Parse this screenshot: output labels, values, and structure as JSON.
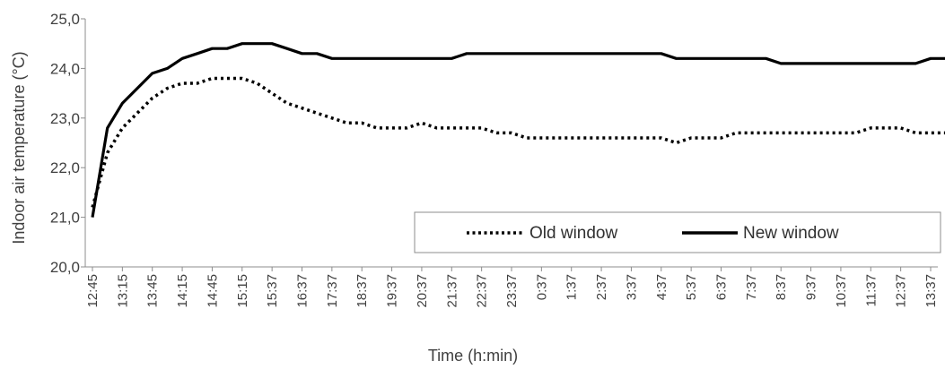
{
  "chart_data": {
    "type": "line",
    "title": "",
    "xlabel": "Time (h:min)",
    "ylabel": "Indoor air temperature (°C)",
    "ylim": [
      20.0,
      25.0
    ],
    "yticks": [
      "20,0",
      "21,0",
      "22,0",
      "23,0",
      "24,0",
      "25,0"
    ],
    "categories": [
      "12:45",
      "13:15",
      "13:45",
      "14:15",
      "14:45",
      "15:15",
      "15:37",
      "16:37",
      "17:37",
      "18:37",
      "19:37",
      "20:37",
      "21:37",
      "22:37",
      "23:37",
      "0:37",
      "1:37",
      "2:37",
      "3:37",
      "4:37",
      "5:37",
      "6:37",
      "7:37",
      "8:37",
      "9:37",
      "10:37",
      "11:37",
      "12:37",
      "13:37"
    ],
    "legend_position": "bottom-right",
    "grid": false,
    "series": [
      {
        "name": "Old window",
        "style": "dotted",
        "color": "#000000",
        "x": [
          0,
          0.5,
          1,
          1.5,
          2,
          2.5,
          3,
          3.5,
          4,
          4.5,
          5,
          5.5,
          6,
          6.5,
          7,
          7.5,
          8,
          8.5,
          9,
          9.5,
          10,
          10.5,
          11,
          11.5,
          12,
          12.5,
          13,
          13.5,
          14,
          14.5,
          15,
          15.5,
          16,
          16.5,
          17,
          17.5,
          18,
          18.5,
          19,
          19.5,
          20,
          20.5,
          21,
          21.5,
          22,
          22.5,
          23,
          23.5,
          24,
          24.5,
          25,
          25.5,
          26,
          26.5,
          27,
          27.5,
          28,
          28.5
        ],
        "values": [
          21.2,
          22.3,
          22.8,
          23.1,
          23.4,
          23.6,
          23.7,
          23.7,
          23.8,
          23.8,
          23.8,
          23.7,
          23.5,
          23.3,
          23.2,
          23.1,
          23.0,
          22.9,
          22.9,
          22.8,
          22.8,
          22.8,
          22.9,
          22.8,
          22.8,
          22.8,
          22.8,
          22.7,
          22.7,
          22.6,
          22.6,
          22.6,
          22.6,
          22.6,
          22.6,
          22.6,
          22.6,
          22.6,
          22.6,
          22.5,
          22.6,
          22.6,
          22.6,
          22.7,
          22.7,
          22.7,
          22.7,
          22.7,
          22.7,
          22.7,
          22.7,
          22.7,
          22.8,
          22.8,
          22.8,
          22.7,
          22.7,
          22.7
        ]
      },
      {
        "name": "New window",
        "style": "solid",
        "color": "#000000",
        "x": [
          0,
          0.5,
          1,
          1.5,
          2,
          2.5,
          3,
          3.5,
          4,
          4.5,
          5,
          5.5,
          6,
          6.5,
          7,
          7.5,
          8,
          8.5,
          9,
          9.5,
          10,
          10.5,
          11,
          11.5,
          12,
          12.5,
          13,
          13.5,
          14,
          14.5,
          15,
          15.5,
          16,
          16.5,
          17,
          17.5,
          18,
          18.5,
          19,
          19.5,
          20,
          20.5,
          21,
          21.5,
          22,
          22.5,
          23,
          23.5,
          24,
          24.5,
          25,
          25.5,
          26,
          26.5,
          27,
          27.5,
          28,
          28.5
        ],
        "values": [
          21.0,
          22.8,
          23.3,
          23.6,
          23.9,
          24.0,
          24.2,
          24.3,
          24.4,
          24.4,
          24.5,
          24.5,
          24.5,
          24.4,
          24.3,
          24.3,
          24.2,
          24.2,
          24.2,
          24.2,
          24.2,
          24.2,
          24.2,
          24.2,
          24.2,
          24.3,
          24.3,
          24.3,
          24.3,
          24.3,
          24.3,
          24.3,
          24.3,
          24.3,
          24.3,
          24.3,
          24.3,
          24.3,
          24.3,
          24.2,
          24.2,
          24.2,
          24.2,
          24.2,
          24.2,
          24.2,
          24.1,
          24.1,
          24.1,
          24.1,
          24.1,
          24.1,
          24.1,
          24.1,
          24.1,
          24.1,
          24.2,
          24.2
        ]
      }
    ]
  }
}
